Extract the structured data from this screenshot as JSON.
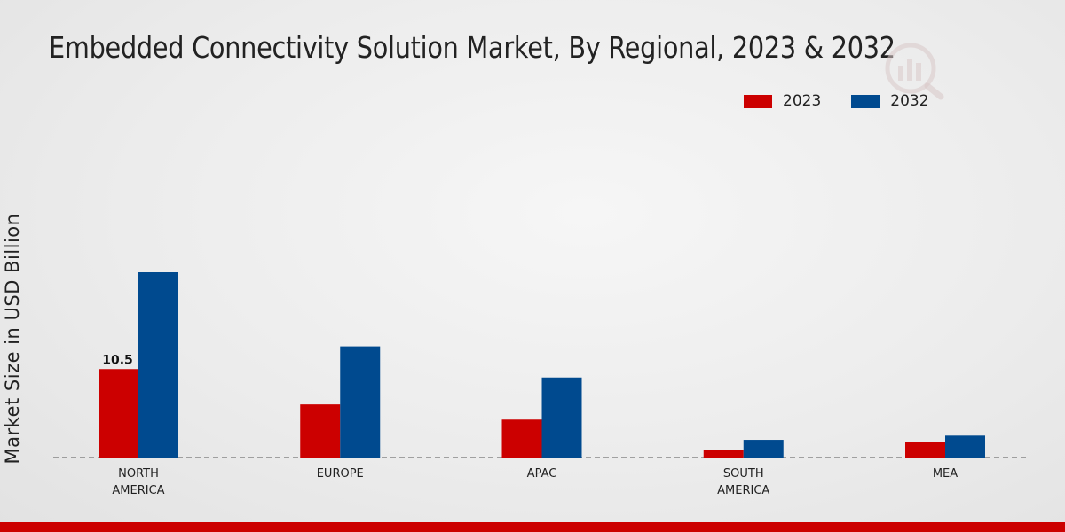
{
  "chart_data": {
    "type": "bar",
    "title": "Embedded Connectivity Solution Market, By Regional, 2023 & 2032",
    "xlabel": "",
    "ylabel": "Market Size in USD Billion",
    "categories": [
      "NORTH AMERICA",
      "EUROPE",
      "APAC",
      "SOUTH AMERICA",
      "MEA"
    ],
    "category_lines": [
      [
        "NORTH",
        "AMERICA"
      ],
      [
        "EUROPE"
      ],
      [
        "APAC"
      ],
      [
        "SOUTH",
        "AMERICA"
      ],
      [
        "MEA"
      ]
    ],
    "series": [
      {
        "name": "2023",
        "color": "#cc0000",
        "values": [
          10.5,
          6.3,
          4.5,
          0.9,
          1.8
        ]
      },
      {
        "name": "2032",
        "color": "#004a8f",
        "values": [
          22.0,
          13.2,
          9.5,
          2.1,
          2.6
        ]
      }
    ],
    "data_labels": [
      {
        "series": 0,
        "index": 0,
        "text": "10.5"
      }
    ],
    "ylim": [
      0,
      22
    ],
    "grid": false,
    "legend_position": "top-right"
  }
}
